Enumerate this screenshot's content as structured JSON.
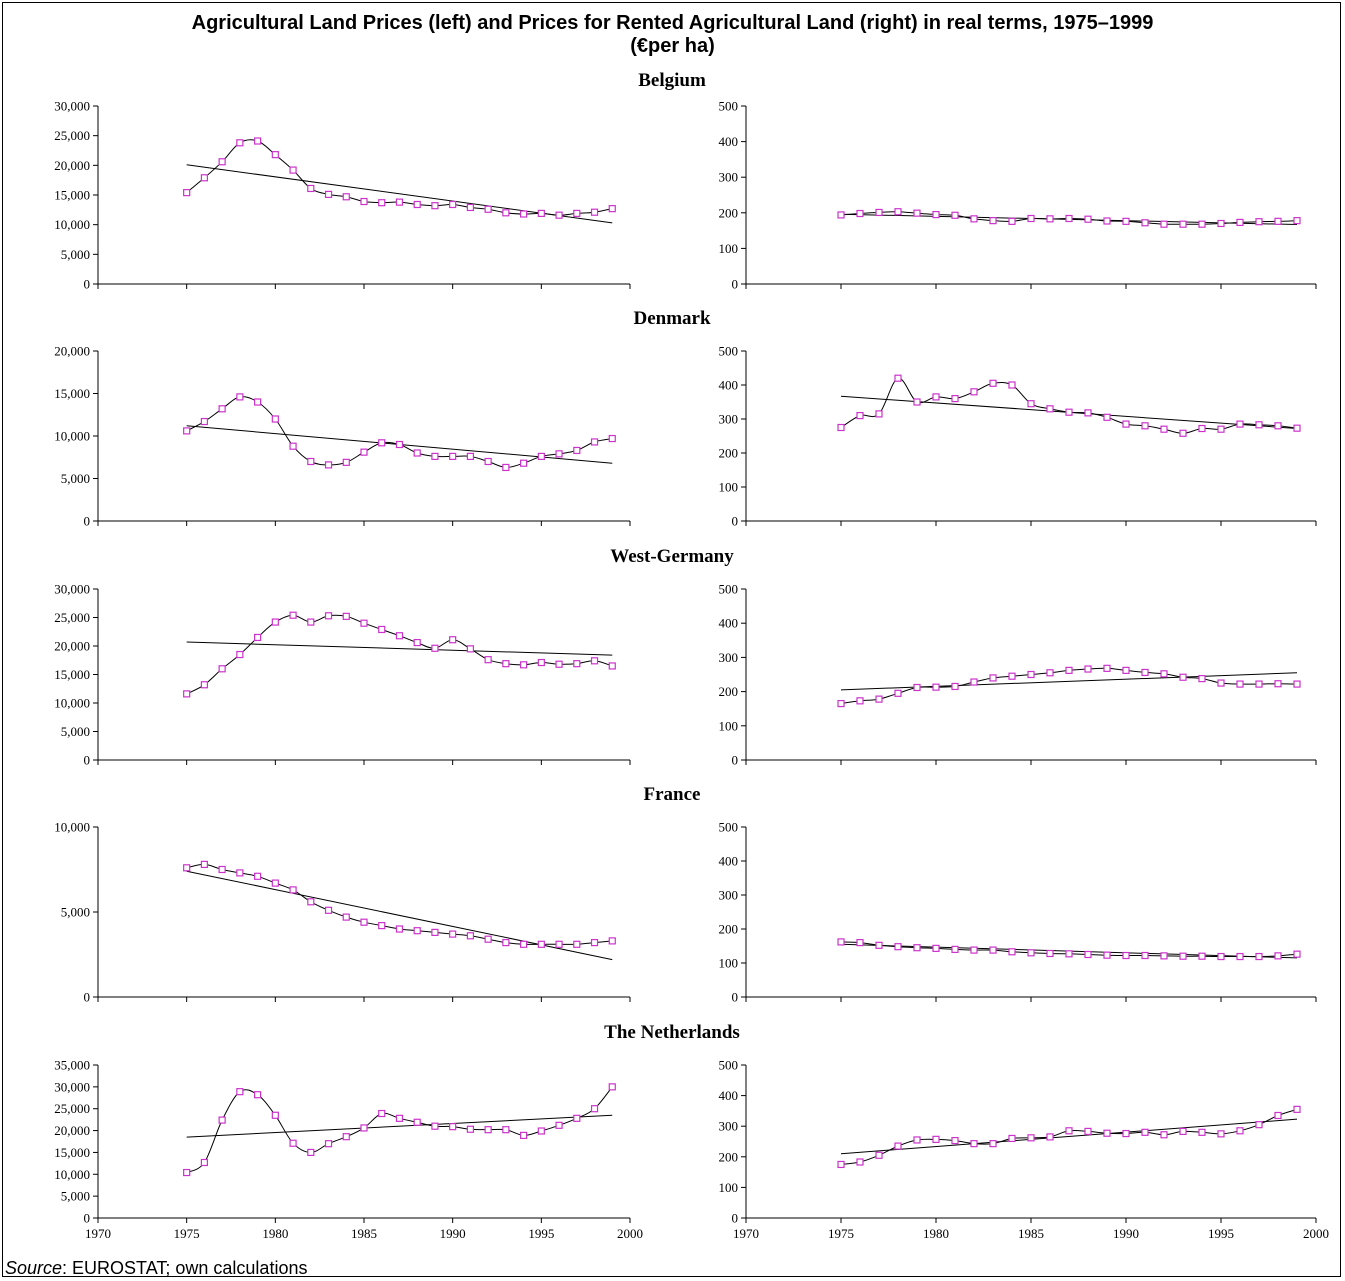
{
  "title_line1": "Agricultural Land Prices (left) and Prices for Rented Agricultural Land (right) in real terms, 1975–1999",
  "title_line2": "(€per ha)",
  "source_label": "Source",
  "source_text": ": EUROSTAT; own calculations",
  "colors": {
    "series": "#cc33cc",
    "line": "#000000",
    "axis": "#000000"
  },
  "chart_data": [
    {
      "type": "line",
      "country": "Belgium",
      "panel": "left",
      "title": "Belgium",
      "ylim": [
        0,
        30000
      ],
      "yticks": [
        0,
        5000,
        10000,
        15000,
        20000,
        25000,
        30000
      ],
      "yticklabels": [
        "0",
        "5,000",
        "10,000",
        "15,000",
        "20,000",
        "25,000",
        "30,000"
      ],
      "xlim": [
        1970,
        2000
      ],
      "xticklabels": [],
      "x": [
        1975,
        1976,
        1977,
        1978,
        1979,
        1980,
        1981,
        1982,
        1983,
        1984,
        1985,
        1986,
        1987,
        1988,
        1989,
        1990,
        1991,
        1992,
        1993,
        1994,
        1995,
        1996,
        1997,
        1998,
        1999
      ],
      "values": [
        15400,
        17900,
        20600,
        23800,
        24100,
        21800,
        19200,
        16100,
        15100,
        14700,
        13900,
        13700,
        13800,
        13400,
        13200,
        13400,
        12900,
        12600,
        12000,
        11800,
        11900,
        11600,
        11900,
        12100,
        12700
      ],
      "trend": [
        20100,
        10300
      ]
    },
    {
      "type": "line",
      "country": "Belgium",
      "panel": "right",
      "ylim": [
        0,
        500
      ],
      "yticks": [
        0,
        100,
        200,
        300,
        400,
        500
      ],
      "yticklabels": [
        "0",
        "100",
        "200",
        "300",
        "400",
        "500"
      ],
      "xlim": [
        1970,
        2000
      ],
      "xticklabels": [],
      "x": [
        1975,
        1976,
        1977,
        1978,
        1979,
        1980,
        1981,
        1982,
        1983,
        1984,
        1985,
        1986,
        1987,
        1988,
        1989,
        1990,
        1991,
        1992,
        1993,
        1994,
        1995,
        1996,
        1997,
        1998,
        1999
      ],
      "values": [
        194,
        198,
        201,
        203,
        199,
        195,
        193,
        183,
        178,
        176,
        184,
        183,
        184,
        182,
        177,
        176,
        172,
        168,
        168,
        168,
        170,
        173,
        175,
        176,
        178
      ],
      "trend": [
        196,
        167
      ]
    },
    {
      "type": "line",
      "country": "Denmark",
      "panel": "left",
      "title": "Denmark",
      "ylim": [
        0,
        20000
      ],
      "yticks": [
        0,
        5000,
        10000,
        15000,
        20000
      ],
      "yticklabels": [
        "0",
        "5,000",
        "10,000",
        "15,000",
        "20,000"
      ],
      "xlim": [
        1970,
        2000
      ],
      "xticklabels": [],
      "x": [
        1975,
        1976,
        1977,
        1978,
        1979,
        1980,
        1981,
        1982,
        1983,
        1984,
        1985,
        1986,
        1987,
        1988,
        1989,
        1990,
        1991,
        1992,
        1993,
        1994,
        1995,
        1996,
        1997,
        1998,
        1999
      ],
      "values": [
        10600,
        11700,
        13200,
        14600,
        14000,
        12000,
        8800,
        7000,
        6600,
        6900,
        8100,
        9200,
        9000,
        8000,
        7600,
        7600,
        7600,
        7000,
        6300,
        6800,
        7600,
        7900,
        8300,
        9300,
        9700
      ],
      "trend": [
        11200,
        6800
      ]
    },
    {
      "type": "line",
      "country": "Denmark",
      "panel": "right",
      "ylim": [
        0,
        500
      ],
      "yticks": [
        0,
        100,
        200,
        300,
        400,
        500
      ],
      "yticklabels": [
        "0",
        "100",
        "200",
        "300",
        "400",
        "500"
      ],
      "xlim": [
        1970,
        2000
      ],
      "xticklabels": [],
      "x": [
        1975,
        1976,
        1977,
        1978,
        1979,
        1980,
        1981,
        1982,
        1983,
        1984,
        1985,
        1986,
        1987,
        1988,
        1989,
        1990,
        1991,
        1992,
        1993,
        1994,
        1995,
        1996,
        1997,
        1998,
        1999
      ],
      "values": [
        275,
        310,
        315,
        420,
        350,
        365,
        360,
        380,
        405,
        400,
        345,
        330,
        320,
        318,
        305,
        285,
        280,
        270,
        258,
        272,
        270,
        285,
        283,
        280,
        273
      ],
      "trend": [
        367,
        272
      ]
    },
    {
      "type": "line",
      "country": "West-Germany",
      "panel": "left",
      "title": "West-Germany",
      "ylim": [
        0,
        30000
      ],
      "yticks": [
        0,
        5000,
        10000,
        15000,
        20000,
        25000,
        30000
      ],
      "yticklabels": [
        "0",
        "5,000",
        "10,000",
        "15,000",
        "20,000",
        "25,000",
        "30,000"
      ],
      "xlim": [
        1970,
        2000
      ],
      "xticklabels": [],
      "x": [
        1975,
        1976,
        1977,
        1978,
        1979,
        1980,
        1981,
        1982,
        1983,
        1984,
        1985,
        1986,
        1987,
        1988,
        1989,
        1990,
        1991,
        1992,
        1993,
        1994,
        1995,
        1996,
        1997,
        1998,
        1999
      ],
      "values": [
        11600,
        13200,
        16000,
        18500,
        21500,
        24200,
        25400,
        24200,
        25300,
        25200,
        24000,
        22900,
        21800,
        20600,
        19600,
        21100,
        19500,
        17600,
        16900,
        16700,
        17100,
        16800,
        16900,
        17400,
        16500
      ],
      "trend": [
        20700,
        18400
      ]
    },
    {
      "type": "line",
      "country": "West-Germany",
      "panel": "right",
      "ylim": [
        0,
        500
      ],
      "yticks": [
        0,
        100,
        200,
        300,
        400,
        500
      ],
      "yticklabels": [
        "0",
        "100",
        "200",
        "300",
        "400",
        "500"
      ],
      "xlim": [
        1970,
        2000
      ],
      "xticklabels": [],
      "x": [
        1975,
        1976,
        1977,
        1978,
        1979,
        1980,
        1981,
        1982,
        1983,
        1984,
        1985,
        1986,
        1987,
        1988,
        1989,
        1990,
        1991,
        1992,
        1993,
        1994,
        1995,
        1996,
        1997,
        1998,
        1999
      ],
      "values": [
        165,
        173,
        178,
        195,
        212,
        213,
        215,
        228,
        240,
        245,
        250,
        255,
        262,
        266,
        268,
        262,
        256,
        252,
        242,
        238,
        225,
        222,
        222,
        223,
        222
      ],
      "trend": [
        205,
        255
      ]
    },
    {
      "type": "line",
      "country": "France",
      "panel": "left",
      "title": "France",
      "ylim": [
        0,
        10000
      ],
      "yticks": [
        0,
        5000,
        10000
      ],
      "yticklabels": [
        "0",
        "5,000",
        "10,000"
      ],
      "xlim": [
        1970,
        2000
      ],
      "xticklabels": [],
      "x": [
        1975,
        1976,
        1977,
        1978,
        1979,
        1980,
        1981,
        1982,
        1983,
        1984,
        1985,
        1986,
        1987,
        1988,
        1989,
        1990,
        1991,
        1992,
        1993,
        1994,
        1995,
        1996,
        1997,
        1998,
        1999
      ],
      "values": [
        7600,
        7800,
        7500,
        7300,
        7100,
        6700,
        6300,
        5600,
        5100,
        4700,
        4400,
        4200,
        4000,
        3900,
        3800,
        3700,
        3600,
        3400,
        3200,
        3100,
        3100,
        3100,
        3100,
        3200,
        3300
      ],
      "trend": [
        7400,
        2200
      ]
    },
    {
      "type": "line",
      "country": "France",
      "panel": "right",
      "ylim": [
        0,
        500
      ],
      "yticks": [
        0,
        100,
        200,
        300,
        400,
        500
      ],
      "yticklabels": [
        "0",
        "100",
        "200",
        "300",
        "400",
        "500"
      ],
      "xlim": [
        1970,
        2000
      ],
      "xticklabels": [],
      "x": [
        1975,
        1976,
        1977,
        1978,
        1979,
        1980,
        1981,
        1982,
        1983,
        1984,
        1985,
        1986,
        1987,
        1988,
        1989,
        1990,
        1991,
        1992,
        1993,
        1994,
        1995,
        1996,
        1997,
        1998,
        1999
      ],
      "values": [
        162,
        160,
        152,
        148,
        145,
        143,
        140,
        138,
        138,
        133,
        130,
        128,
        127,
        125,
        123,
        122,
        122,
        121,
        120,
        120,
        119,
        119,
        119,
        121,
        126
      ],
      "trend": [
        155,
        115
      ]
    },
    {
      "type": "line",
      "country": "The Netherlands",
      "panel": "left",
      "title": "The Netherlands",
      "ylim": [
        0,
        35000
      ],
      "yticks": [
        0,
        5000,
        10000,
        15000,
        20000,
        25000,
        30000,
        35000
      ],
      "yticklabels": [
        "0",
        "5,000",
        "10,000",
        "15,000",
        "20,000",
        "25,000",
        "30,000",
        "35,000"
      ],
      "xlim": [
        1970,
        2000
      ],
      "xticks": [
        1970,
        1975,
        1980,
        1985,
        1990,
        1995,
        2000
      ],
      "xticklabels": [
        "1970",
        "1975",
        "1980",
        "1985",
        "1990",
        "1995",
        "2000"
      ],
      "x": [
        1975,
        1976,
        1977,
        1978,
        1979,
        1980,
        1981,
        1982,
        1983,
        1984,
        1985,
        1986,
        1987,
        1988,
        1989,
        1990,
        1991,
        1992,
        1993,
        1994,
        1995,
        1996,
        1997,
        1998,
        1999
      ],
      "values": [
        10400,
        12700,
        22400,
        28900,
        28200,
        23500,
        17100,
        15000,
        17000,
        18600,
        20600,
        23900,
        22800,
        21900,
        21000,
        20900,
        20300,
        20200,
        20200,
        18900,
        19900,
        21200,
        22800,
        25000,
        30000
      ],
      "trend": [
        18500,
        23500
      ]
    },
    {
      "type": "line",
      "country": "The Netherlands",
      "panel": "right",
      "ylim": [
        0,
        500
      ],
      "yticks": [
        0,
        100,
        200,
        300,
        400,
        500
      ],
      "yticklabels": [
        "0",
        "100",
        "200",
        "300",
        "400",
        "500"
      ],
      "xlim": [
        1970,
        2000
      ],
      "xticks": [
        1970,
        1975,
        1980,
        1985,
        1990,
        1995,
        2000
      ],
      "xticklabels": [
        "1970",
        "1975",
        "1980",
        "1985",
        "1990",
        "1995",
        "2000"
      ],
      "x": [
        1975,
        1976,
        1977,
        1978,
        1979,
        1980,
        1981,
        1982,
        1983,
        1984,
        1985,
        1986,
        1987,
        1988,
        1989,
        1990,
        1991,
        1992,
        1993,
        1994,
        1995,
        1996,
        1997,
        1998,
        1999
      ],
      "values": [
        175,
        183,
        205,
        235,
        255,
        257,
        253,
        243,
        243,
        260,
        262,
        265,
        285,
        283,
        277,
        276,
        280,
        272,
        283,
        280,
        275,
        285,
        305,
        335,
        355
      ],
      "trend": [
        210,
        323
      ]
    }
  ]
}
